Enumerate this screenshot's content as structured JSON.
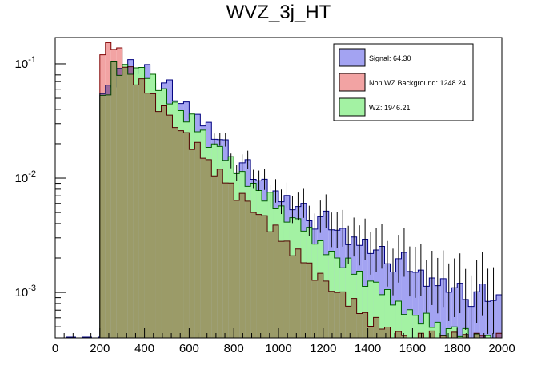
{
  "chart_data": {
    "type": "histogram",
    "title": "WVZ_3j_HT",
    "xlabel": "",
    "ylabel": "",
    "x_scale": "linear",
    "y_scale": "log",
    "xlim": [
      0,
      2000
    ],
    "ylim": [
      0.0004,
      0.17
    ],
    "bin_width": 25,
    "x_tick_labels": [
      "0",
      "200",
      "400",
      "600",
      "800",
      "1000",
      "1200",
      "1400",
      "1600",
      "1800",
      "2000"
    ],
    "y_tick_labels": [
      {
        "base": "10",
        "exp": "-1",
        "value": 0.1
      },
      {
        "base": "10",
        "exp": "-2",
        "value": 0.01
      },
      {
        "base": "10",
        "exp": "-3",
        "value": 0.001
      }
    ],
    "legend_position": "top-right",
    "stacking": "overlaid",
    "series": [
      {
        "name": "Signal: 64.30",
        "color": "#a3a3f2",
        "line_color": "#000080",
        "knots": [
          [
            200,
            0.055
          ],
          [
            225,
            0.058
          ],
          [
            250,
            0.072
          ],
          [
            275,
            0.085
          ],
          [
            300,
            0.088
          ],
          [
            325,
            0.095
          ],
          [
            350,
            0.09
          ],
          [
            400,
            0.082
          ],
          [
            450,
            0.07
          ],
          [
            500,
            0.055
          ],
          [
            550,
            0.045
          ],
          [
            600,
            0.038
          ],
          [
            650,
            0.03
          ],
          [
            700,
            0.024
          ],
          [
            750,
            0.018
          ],
          [
            800,
            0.014
          ],
          [
            850,
            0.011
          ],
          [
            900,
            0.0095
          ],
          [
            950,
            0.008
          ],
          [
            1000,
            0.0065
          ],
          [
            1050,
            0.0058
          ],
          [
            1100,
            0.005
          ],
          [
            1150,
            0.0045
          ],
          [
            1200,
            0.0039
          ],
          [
            1250,
            0.0035
          ],
          [
            1300,
            0.003
          ],
          [
            1350,
            0.0027
          ],
          [
            1400,
            0.0024
          ],
          [
            1450,
            0.0021
          ],
          [
            1500,
            0.0019
          ],
          [
            1550,
            0.0017
          ],
          [
            1600,
            0.0015
          ],
          [
            1650,
            0.0013
          ],
          [
            1700,
            0.0012
          ],
          [
            1750,
            0.0011
          ],
          [
            1800,
            0.001
          ],
          [
            1850,
            0.00095
          ],
          [
            1900,
            0.0009
          ],
          [
            1950,
            0.00085
          ],
          [
            1975,
            0.00085
          ]
        ],
        "pattern": [
          0,
          0.05,
          -0.06,
          0.03,
          -0.02,
          0.06,
          -0.04,
          0.02,
          0.08,
          -0.05,
          -0.1,
          0.04,
          0.12,
          -0.02
        ]
      },
      {
        "name": "WZ: 1946.21",
        "color": "#a3f2a3",
        "line_color": "#006000",
        "knots": [
          [
            200,
            0.053
          ],
          [
            225,
            0.06
          ],
          [
            250,
            0.09
          ],
          [
            275,
            0.085
          ],
          [
            300,
            0.09
          ],
          [
            325,
            0.093
          ],
          [
            350,
            0.088
          ],
          [
            400,
            0.078
          ],
          [
            450,
            0.064
          ],
          [
            500,
            0.05
          ],
          [
            550,
            0.039
          ],
          [
            600,
            0.031
          ],
          [
            650,
            0.024
          ],
          [
            700,
            0.019
          ],
          [
            750,
            0.015
          ],
          [
            800,
            0.012
          ],
          [
            850,
            0.0095
          ],
          [
            900,
            0.0078
          ],
          [
            950,
            0.0064
          ],
          [
            1000,
            0.0052
          ],
          [
            1050,
            0.0043
          ],
          [
            1100,
            0.0036
          ],
          [
            1150,
            0.0029
          ],
          [
            1200,
            0.0024
          ],
          [
            1250,
            0.002
          ],
          [
            1300,
            0.0017
          ],
          [
            1350,
            0.0014
          ],
          [
            1400,
            0.0012
          ],
          [
            1450,
            0.001
          ],
          [
            1500,
            0.00085
          ],
          [
            1550,
            0.00072
          ],
          [
            1600,
            0.00063
          ],
          [
            1650,
            0.00056
          ],
          [
            1700,
            0.0005
          ],
          [
            1750,
            0.00046
          ],
          [
            1800,
            0.00043
          ],
          [
            1850,
            0.00041
          ],
          [
            1900,
            0.0004
          ],
          [
            1950,
            0.0004
          ],
          [
            1975,
            0.0004
          ]
        ],
        "pattern": [
          0,
          -0.05,
          0.07,
          -0.03,
          0.04,
          -0.06,
          0.02,
          0.05,
          -0.02,
          0.06,
          -0.04,
          0.03,
          -0.05,
          0.02
        ]
      },
      {
        "name": "Non WZ Background: 1248.24",
        "color": "#f2a3a3",
        "line_color": "#800000",
        "knots": [
          [
            200,
            0.12
          ],
          [
            225,
            0.14
          ],
          [
            250,
            0.15
          ],
          [
            275,
            0.12
          ],
          [
            300,
            0.1
          ],
          [
            325,
            0.09
          ],
          [
            350,
            0.075
          ],
          [
            400,
            0.058
          ],
          [
            450,
            0.045
          ],
          [
            500,
            0.034
          ],
          [
            550,
            0.026
          ],
          [
            600,
            0.02
          ],
          [
            650,
            0.016
          ],
          [
            700,
            0.012
          ],
          [
            750,
            0.0095
          ],
          [
            800,
            0.0075
          ],
          [
            850,
            0.006
          ],
          [
            900,
            0.0048
          ],
          [
            950,
            0.0038
          ],
          [
            1000,
            0.003
          ],
          [
            1050,
            0.0024
          ],
          [
            1100,
            0.0019
          ],
          [
            1150,
            0.0015
          ],
          [
            1200,
            0.0012
          ],
          [
            1250,
            0.001
          ],
          [
            1300,
            0.00085
          ],
          [
            1350,
            0.0007
          ],
          [
            1400,
            0.00058
          ],
          [
            1450,
            0.0005
          ],
          [
            1500,
            0.00043
          ],
          [
            1550,
            0.0004
          ],
          [
            1975,
            0.0004
          ]
        ],
        "pattern": [
          0,
          0.04,
          -0.05,
          0.06,
          -0.03,
          0.02,
          -0.06,
          0.05,
          -0.02,
          0.03,
          -0.07,
          0.04,
          0.02,
          -0.03
        ]
      }
    ]
  }
}
